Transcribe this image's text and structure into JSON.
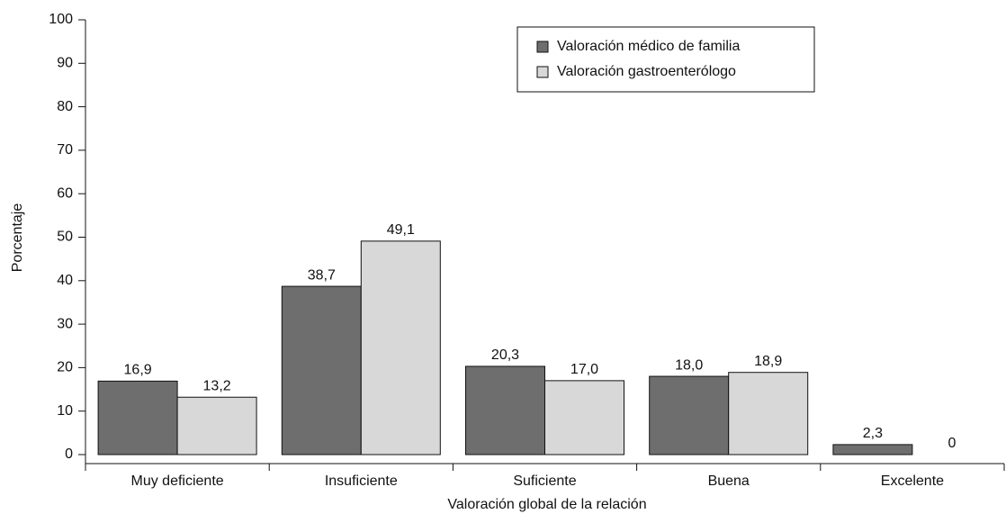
{
  "chart_data": {
    "type": "bar",
    "xlabel": "Valoración global de la relación",
    "ylabel": "Porcentaje",
    "categories": [
      "Muy deficiente",
      "Insuficiente",
      "Suficiente",
      "Buena",
      "Excelente"
    ],
    "series": [
      {
        "name": "Valoración médico de familia",
        "color": "#6e6e6e",
        "values": [
          16.9,
          38.7,
          20.3,
          18.0,
          2.3
        ],
        "value_labels": [
          "16,9",
          "38,7",
          "20,3",
          "18,0",
          "2,3"
        ]
      },
      {
        "name": "Valoración gastroenterólogo",
        "color": "#d8d8d8",
        "values": [
          13.2,
          49.1,
          17.0,
          18.9,
          0
        ],
        "value_labels": [
          "13,2",
          "49,1",
          "17,0",
          "18,9",
          "0"
        ]
      }
    ],
    "ylim": [
      0,
      100
    ],
    "yticks": [
      0,
      10,
      20,
      30,
      40,
      50,
      60,
      70,
      80,
      90,
      100
    ],
    "legend": "upper-right"
  }
}
